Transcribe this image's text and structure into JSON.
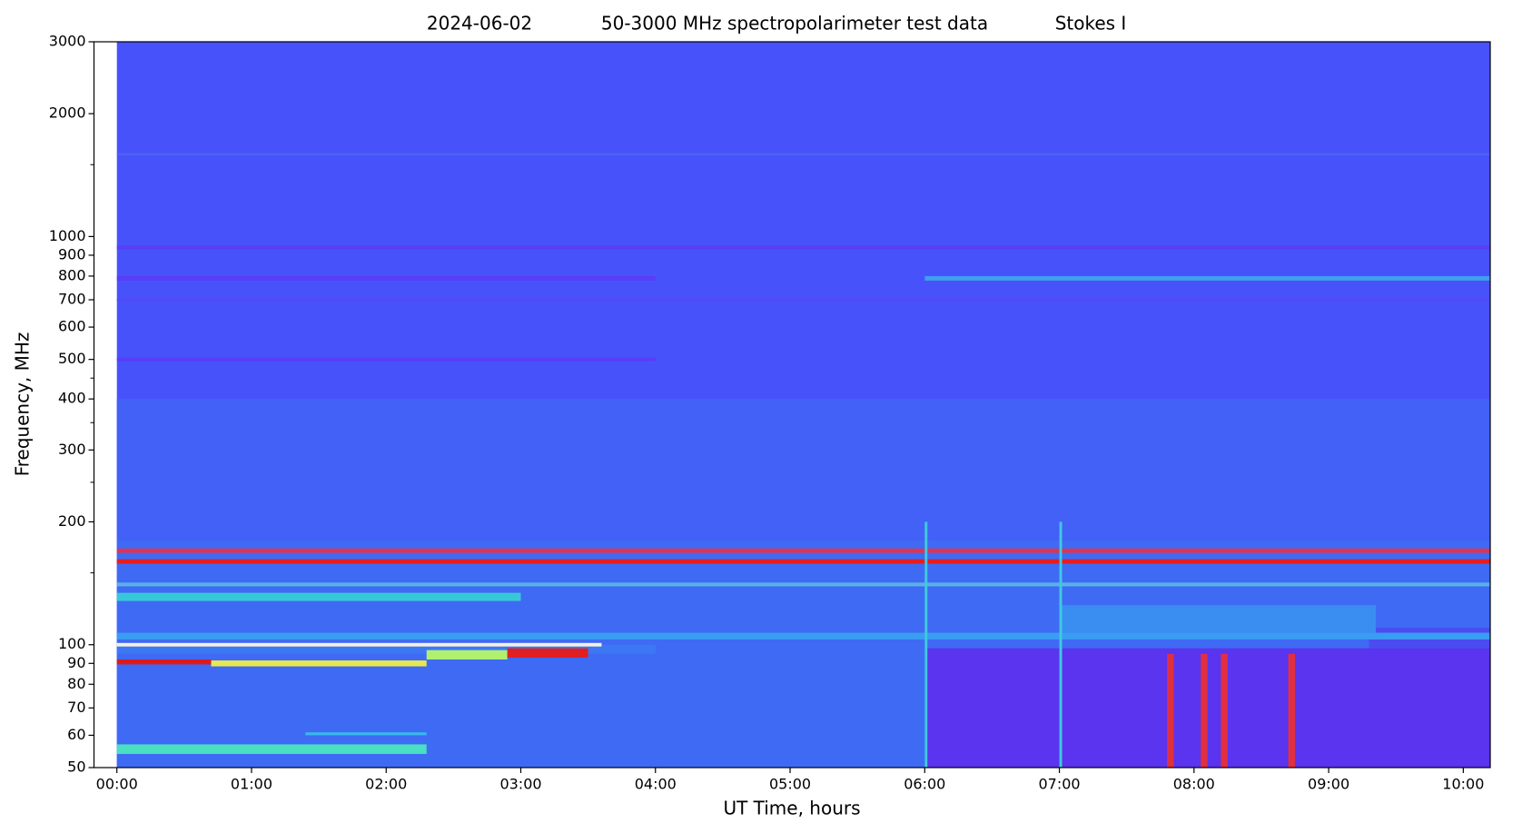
{
  "chart_data": {
    "type": "spectrogram",
    "title": [
      "2024-06-02",
      "50-3000 MHz spectropolarimeter test data",
      "Stokes I"
    ],
    "x_label": "UT Time, hours",
    "y_label": "Frequency, MHz",
    "log_y": true,
    "xlim": [
      -0.17,
      10.2
    ],
    "ylim": [
      50,
      3000
    ],
    "xticks": [
      {
        "value": 0,
        "label": "00:00"
      },
      {
        "value": 1,
        "label": "01:00"
      },
      {
        "value": 2,
        "label": "02:00"
      },
      {
        "value": 3,
        "label": "03:00"
      },
      {
        "value": 4,
        "label": "04:00"
      },
      {
        "value": 5,
        "label": "05:00"
      },
      {
        "value": 6,
        "label": "06:00"
      },
      {
        "value": 7,
        "label": "07:00"
      },
      {
        "value": 8,
        "label": "08:00"
      },
      {
        "value": 9,
        "label": "09:00"
      },
      {
        "value": 10,
        "label": "10:00"
      }
    ],
    "yticks": [
      50,
      60,
      70,
      80,
      90,
      100,
      200,
      300,
      400,
      500,
      600,
      700,
      800,
      900,
      1000,
      2000,
      3000
    ],
    "yminor_ticks": [
      150,
      250,
      350,
      450,
      1500
    ],
    "features": [
      {
        "t": [
          0,
          10.2
        ],
        "f": [
          50,
          3000
        ],
        "color": "#4852fb"
      },
      {
        "t": [
          0,
          10.2
        ],
        "f": [
          180,
          400
        ],
        "color": "#4360f7"
      },
      {
        "t": [
          0,
          10.2
        ],
        "f": [
          50,
          180
        ],
        "color": "#3f6af4"
      },
      {
        "t": [
          0,
          4
        ],
        "f": [
          95,
          100
        ],
        "color": "#3d78f4"
      },
      {
        "t": [
          6,
          10.2
        ],
        "f": [
          50,
          98
        ],
        "color": "#5a34ee"
      },
      {
        "t": [
          9.3,
          10.2
        ],
        "f": [
          98,
          110
        ],
        "color": "#4a4cf0"
      },
      {
        "t": [
          0,
          10.2
        ],
        "f": [
          930,
          950
        ],
        "color": "#5a3df6"
      },
      {
        "t": [
          0,
          4
        ],
        "f": [
          780,
          800
        ],
        "color": "#5a3df6"
      },
      {
        "t": [
          6,
          10.2
        ],
        "f": [
          780,
          800
        ],
        "color": "#3fa0f0"
      },
      {
        "t": [
          0,
          10.2
        ],
        "f": [
          695,
          705
        ],
        "color": "#5548f5"
      },
      {
        "t": [
          0,
          4
        ],
        "f": [
          495,
          505
        ],
        "color": "#5a3df6"
      },
      {
        "t": [
          0,
          10.2
        ],
        "f": [
          1580,
          1600
        ],
        "color": "#4c62f3"
      },
      {
        "t": [
          0,
          10.2
        ],
        "f": [
          168,
          172
        ],
        "color": "#e83048"
      },
      {
        "t": [
          0,
          10.2
        ],
        "f": [
          158,
          162
        ],
        "color": "#e81c20"
      },
      {
        "t": [
          0,
          10.2
        ],
        "f": [
          139,
          142
        ],
        "color": "#5ab0e8"
      },
      {
        "t": [
          0,
          3
        ],
        "f": [
          128,
          134
        ],
        "color": "#36c8d8"
      },
      {
        "t": [
          0,
          10.2
        ],
        "f": [
          103,
          107
        ],
        "color": "#3a9cf2"
      },
      {
        "t": [
          7,
          9.35
        ],
        "f": [
          107,
          125
        ],
        "color": "#3a8ef2"
      },
      {
        "t": [
          0,
          3.6
        ],
        "f": [
          99,
          101
        ],
        "color": "#f4f0e0"
      },
      {
        "t": [
          0,
          0.7
        ],
        "f": [
          89.5,
          92
        ],
        "color": "#e01a1a"
      },
      {
        "t": [
          0.7,
          2.3
        ],
        "f": [
          88.5,
          91.5
        ],
        "color": "#e8e850"
      },
      {
        "t": [
          2.3,
          2.9
        ],
        "f": [
          92,
          97
        ],
        "color": "#b0f070"
      },
      {
        "t": [
          2.9,
          3.5
        ],
        "f": [
          93,
          98
        ],
        "color": "#e02020"
      },
      {
        "t": [
          0,
          2.3
        ],
        "f": [
          54,
          57
        ],
        "color": "#48e0c0"
      },
      {
        "t": [
          1.4,
          2.3
        ],
        "f": [
          60,
          61
        ],
        "color": "#38b8e8"
      },
      {
        "t": [
          7.8,
          7.85
        ],
        "f": [
          50,
          95
        ],
        "color": "#e03040"
      },
      {
        "t": [
          8.05,
          8.1
        ],
        "f": [
          50,
          95
        ],
        "color": "#e03040"
      },
      {
        "t": [
          8.2,
          8.25
        ],
        "f": [
          50,
          95
        ],
        "color": "#e03040"
      },
      {
        "t": [
          8.7,
          8.75
        ],
        "f": [
          50,
          95
        ],
        "color": "#e03040"
      },
      {
        "t": [
          6,
          6.02
        ],
        "f": [
          50,
          200
        ],
        "color": "#40c8e0"
      },
      {
        "t": [
          7,
          7.02
        ],
        "f": [
          50,
          200
        ],
        "color": "#40c8e0"
      }
    ]
  }
}
